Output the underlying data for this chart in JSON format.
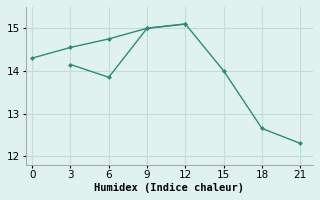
{
  "line1_x": [
    0,
    3,
    6,
    9,
    12
  ],
  "line1_y": [
    14.3,
    14.55,
    14.75,
    15.0,
    15.1
  ],
  "line2_x": [
    3,
    6,
    9,
    12,
    15,
    18,
    21
  ],
  "line2_y": [
    14.15,
    13.85,
    15.0,
    15.1,
    14.0,
    12.65,
    12.3
  ],
  "color": "#2d8b7a",
  "bg_color": "#dff2ee",
  "grid_color": "#c2ddd8",
  "xlabel": "Humidex (Indice chaleur)",
  "ylim": [
    11.8,
    15.5
  ],
  "xlim": [
    -0.5,
    22
  ],
  "xticks": [
    0,
    3,
    6,
    9,
    12,
    15,
    18,
    21
  ],
  "yticks": [
    12,
    13,
    14,
    15
  ],
  "fontsize": 7.5
}
